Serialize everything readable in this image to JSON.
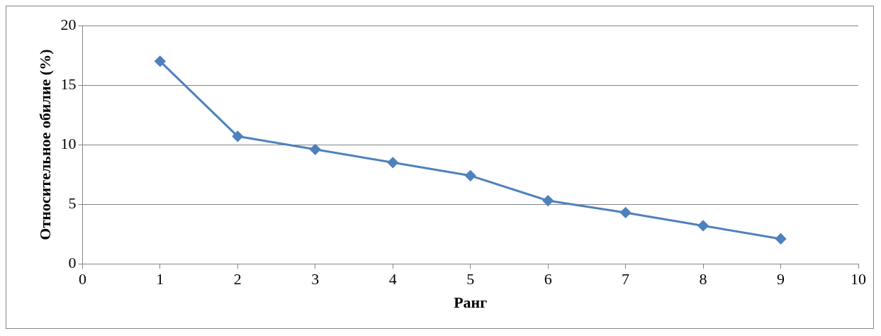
{
  "chart_data": {
    "type": "line",
    "xlabel": "Ранг",
    "ylabel": "Относительное обилие (%)",
    "x": [
      1,
      2,
      3,
      4,
      5,
      6,
      7,
      8,
      9
    ],
    "series": [
      {
        "color": "#4f81bd",
        "values": [
          17.0,
          10.7,
          9.6,
          8.5,
          7.4,
          5.3,
          4.3,
          3.2,
          2.1
        ]
      }
    ],
    "xlim": [
      0,
      10
    ],
    "xticks": [
      0,
      1,
      2,
      3,
      4,
      5,
      6,
      7,
      8,
      9,
      10
    ],
    "ylim": [
      0,
      20
    ],
    "yticks": [
      0,
      5,
      10,
      15,
      20
    ],
    "grid": "y",
    "legend": false,
    "marker": "diamond",
    "line_style": "solid"
  }
}
